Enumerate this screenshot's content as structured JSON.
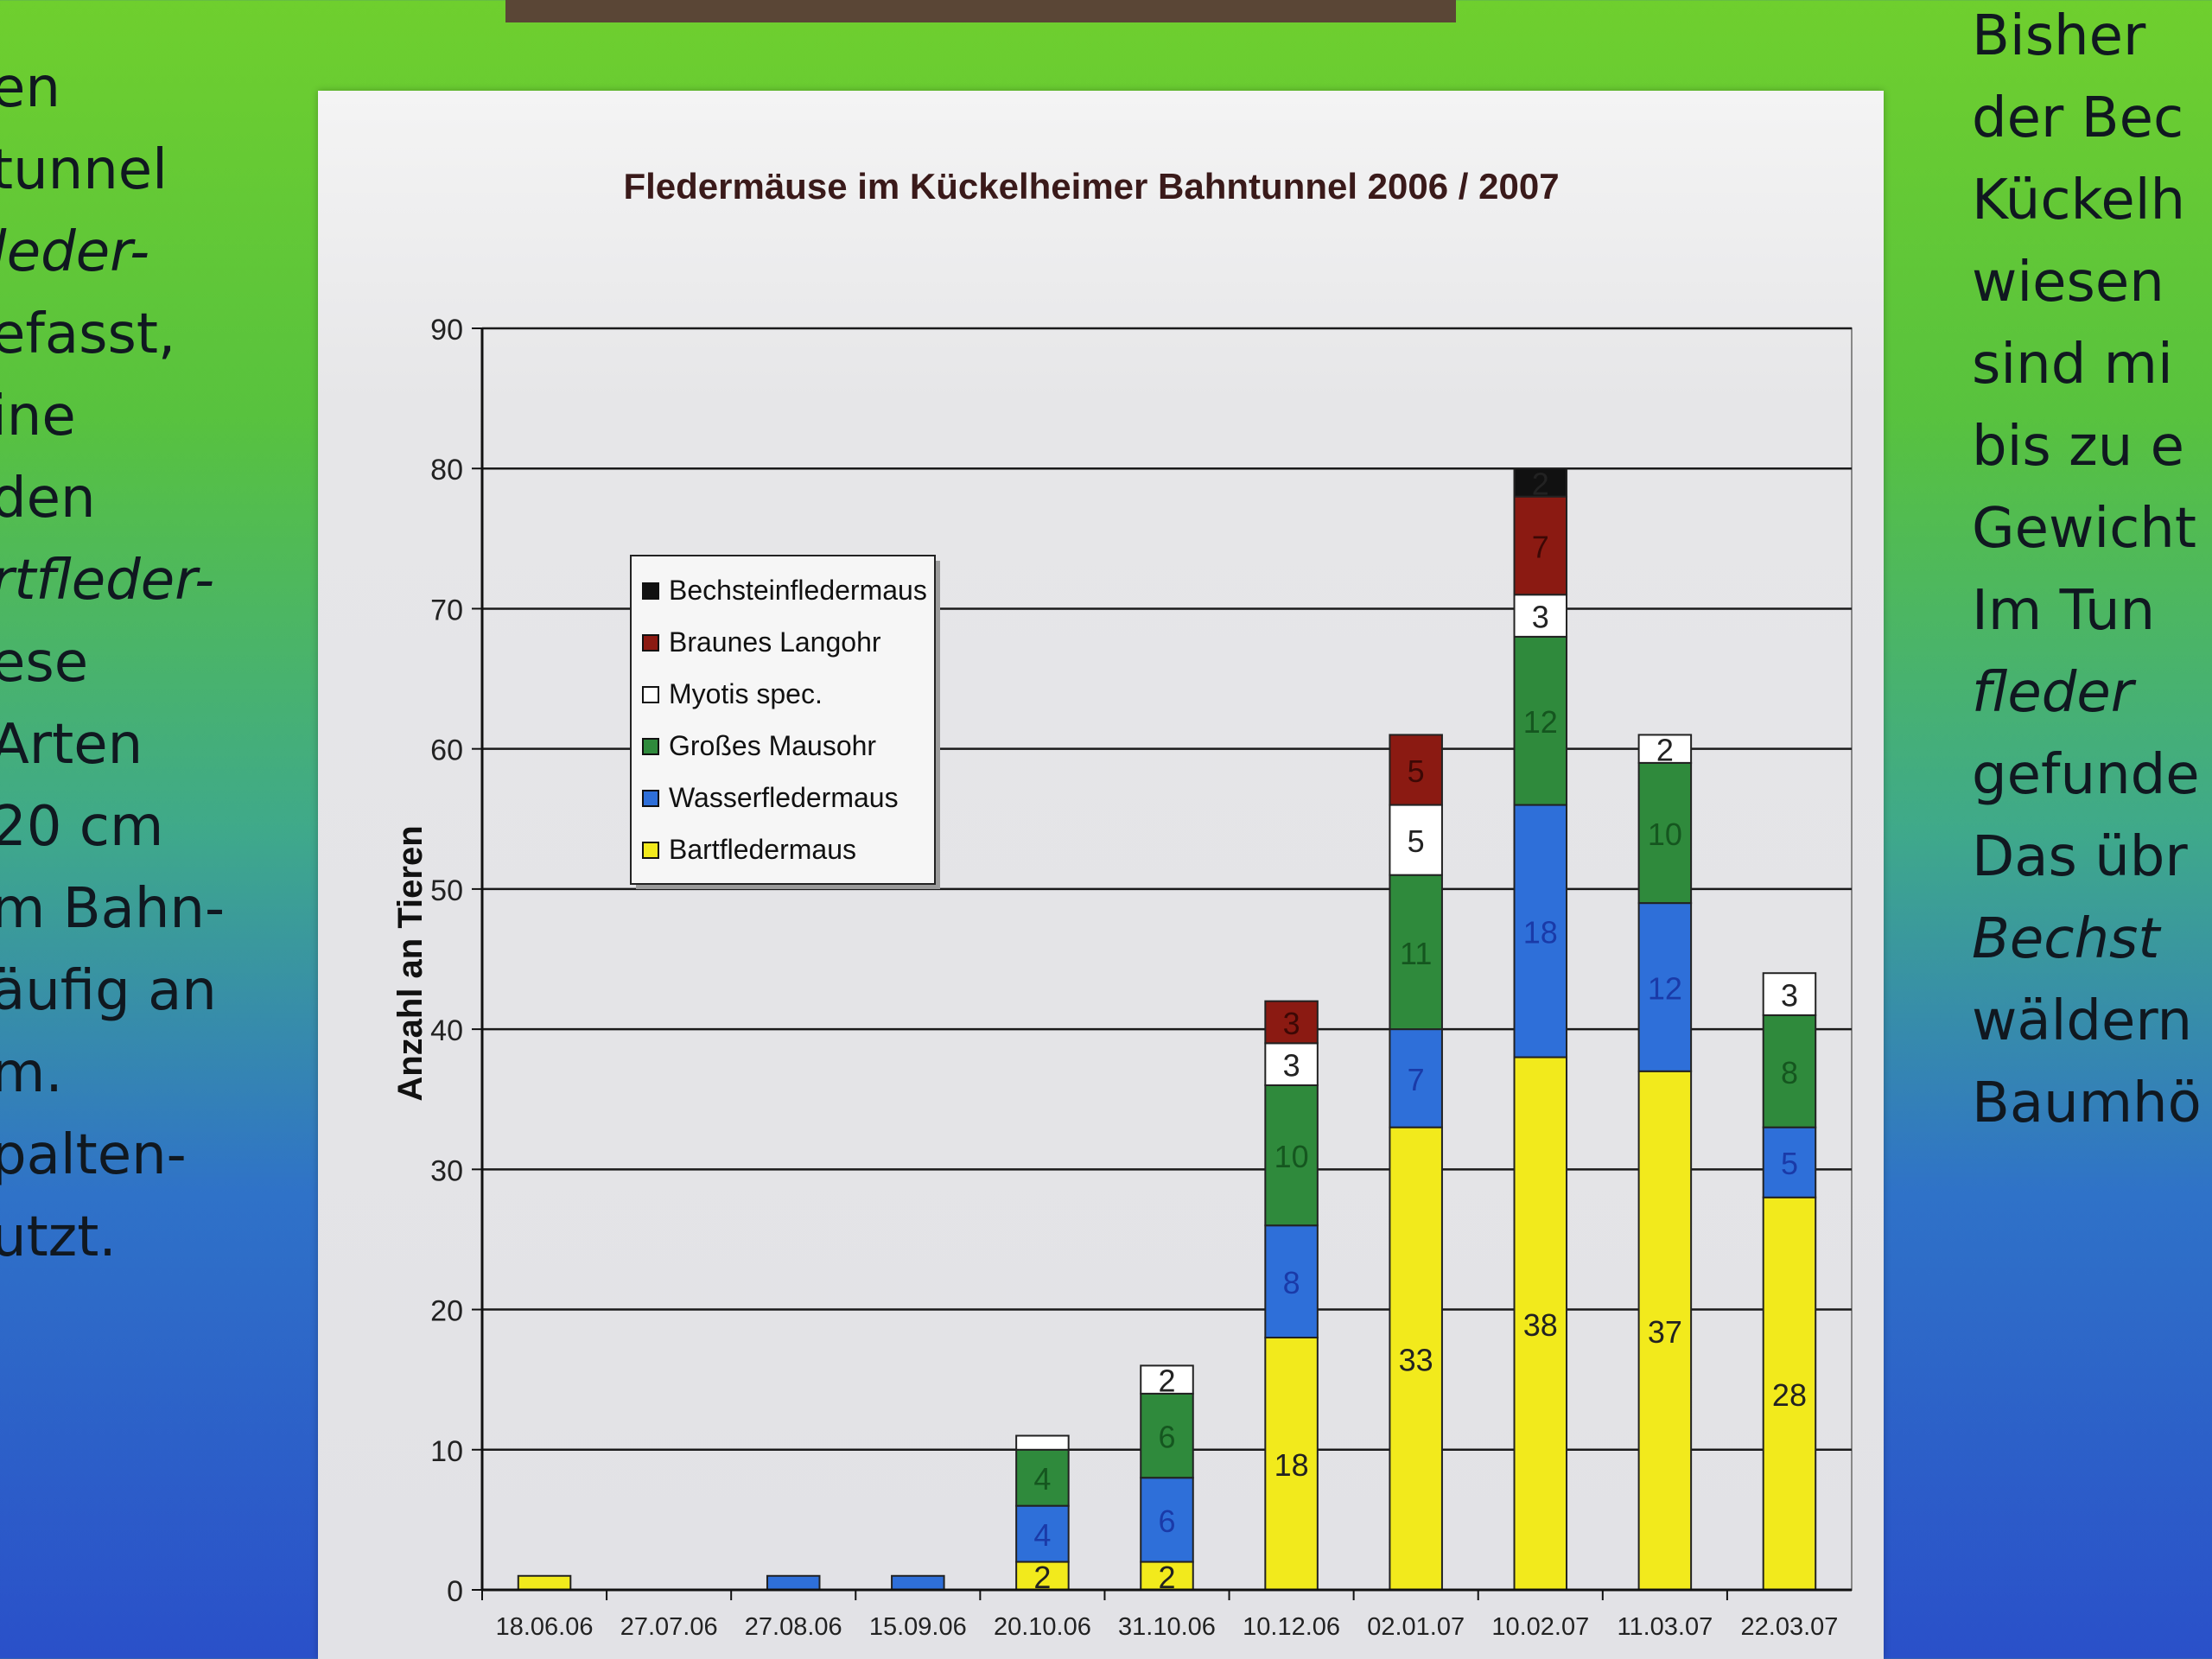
{
  "left_text": [
    {
      "text": "en",
      "italic": false
    },
    {
      "text": "tunnel",
      "italic": false
    },
    {
      "text": "leder-",
      "italic": true
    },
    {
      "text": "efasst,",
      "italic": false
    },
    {
      "text": "ine",
      "italic": false
    },
    {
      "text": "den",
      "italic": false
    },
    {
      "text": "rtfleder-",
      "italic": true
    },
    {
      "text": "ese",
      "italic": false
    },
    {
      "text": "Arten",
      "italic": false
    },
    {
      "text": "20 cm",
      "italic": false
    },
    {
      "text": "m Bahn-",
      "italic": false
    },
    {
      "text": "äufig an",
      "italic": false
    },
    {
      "text": "m.",
      "italic": false
    },
    {
      "text": "palten-",
      "italic": false
    },
    {
      "text": "utzt.",
      "italic": false
    }
  ],
  "right_text": [
    {
      "text": "Bisher",
      "italic": false
    },
    {
      "text": "der Bec",
      "italic": false
    },
    {
      "text": "Kückelh",
      "italic": false
    },
    {
      "text": "wiesen",
      "italic": false
    },
    {
      "text": "sind mi",
      "italic": false
    },
    {
      "text": "bis zu e",
      "italic": false
    },
    {
      "text": "Gewicht",
      "italic": false
    },
    {
      "text": "Im Tun",
      "italic": false
    },
    {
      "text": "fleder",
      "italic": true
    },
    {
      "text": "gefunde",
      "italic": false
    },
    {
      "text": "Das übr",
      "italic": false
    },
    {
      "text": "Bechst",
      "italic": true
    },
    {
      "text": "wäldern",
      "italic": false
    },
    {
      "text": "Baumhö",
      "italic": false
    }
  ],
  "chart_data": {
    "type": "bar",
    "stacked": true,
    "title": "Fledermäuse im Kückelheimer Bahntunnel 2006 / 2007",
    "ylabel": "Anzahl an Tieren",
    "xlabel": "",
    "ylim": [
      0,
      90
    ],
    "yticks": [
      0,
      10,
      20,
      30,
      40,
      50,
      60,
      70,
      80,
      90
    ],
    "grid": true,
    "legend_position": "upper-left",
    "categories": [
      "18.06.06",
      "27.07.06",
      "27.08.06",
      "15.09.06",
      "20.10.06",
      "31.10.06",
      "10.12.06",
      "02.01.07",
      "10.02.07",
      "11.03.07",
      "22.03.07"
    ],
    "series": [
      {
        "name": "Bartfledermaus",
        "color": "#f2ea1c",
        "values": [
          1,
          0,
          0,
          0,
          2,
          2,
          18,
          33,
          38,
          37,
          28
        ]
      },
      {
        "name": "Wasserfledermaus",
        "color": "#2e6fd9",
        "values": [
          0,
          0,
          1,
          1,
          4,
          6,
          8,
          7,
          18,
          12,
          5
        ]
      },
      {
        "name": "Großes Mausohr",
        "color": "#2f8a3c",
        "values": [
          0,
          0,
          0,
          0,
          4,
          6,
          10,
          11,
          12,
          10,
          8
        ]
      },
      {
        "name": "Myotis spec.",
        "color": "#ffffff",
        "values": [
          0,
          0,
          0,
          0,
          1,
          2,
          3,
          5,
          3,
          2,
          3
        ]
      },
      {
        "name": "Braunes Langohr",
        "color": "#8b1a12",
        "values": [
          0,
          0,
          0,
          0,
          0,
          0,
          3,
          5,
          7,
          0,
          0
        ]
      },
      {
        "name": "Bechsteinfledermaus",
        "color": "#111111",
        "values": [
          0,
          0,
          0,
          0,
          0,
          0,
          0,
          0,
          2,
          0,
          0
        ]
      }
    ],
    "legend_order": [
      "Bechsteinfledermaus",
      "Braunes Langohr",
      "Myotis spec.",
      "Großes Mausohr",
      "Wasserfledermaus",
      "Bartfledermaus"
    ]
  }
}
